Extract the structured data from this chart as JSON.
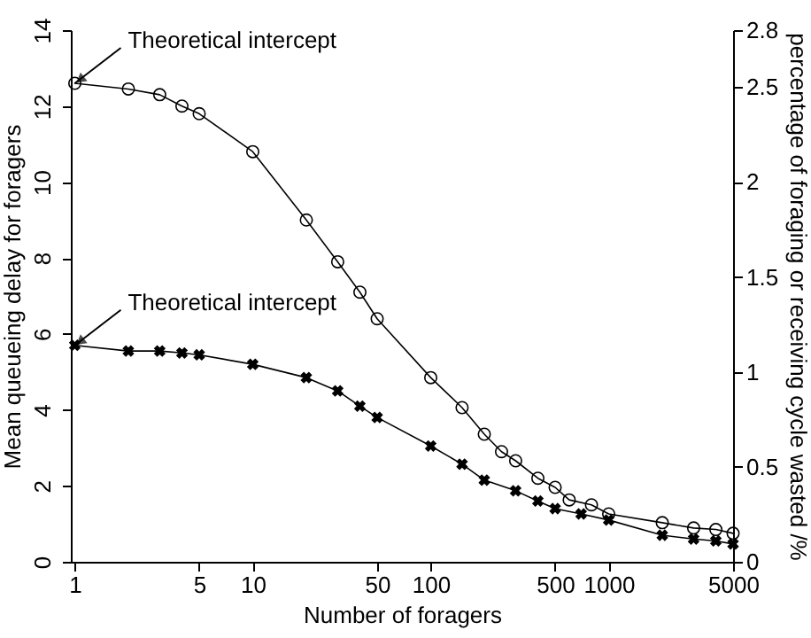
{
  "chart_data": {
    "type": "line",
    "xlabel": "Number of foragers",
    "ylabel": "Mean queueing delay for foragers",
    "y2label": "percentage of foraging or receiving cycle wasted /%",
    "log": "x",
    "xlim": [
      0.95,
      5000
    ],
    "xticks": [
      1,
      5,
      10,
      50,
      100,
      500,
      1000,
      5000
    ],
    "ylim": [
      0,
      14
    ],
    "yticks": [
      0,
      2,
      4,
      6,
      8,
      10,
      12,
      14
    ],
    "y2lim": [
      0,
      2.8
    ],
    "y2ticks": [
      0,
      0.5,
      1,
      1.5,
      2,
      2.5,
      2.8
    ],
    "grid": false,
    "series": [
      {
        "color": "#000000",
        "marker": "circle",
        "x": [
          1,
          2,
          3,
          4,
          5,
          10,
          20,
          30,
          40,
          50,
          100,
          150,
          200,
          250,
          300,
          400,
          500,
          600,
          800,
          1000,
          2000,
          3000,
          4000,
          5000
        ],
        "values": [
          12.6,
          12.45,
          12.3,
          12.0,
          11.8,
          10.8,
          9.0,
          7.9,
          7.1,
          6.4,
          4.85,
          4.06,
          3.36,
          2.9,
          2.66,
          2.2,
          1.96,
          1.63,
          1.5,
          1.26,
          1.03,
          0.89,
          0.85,
          0.75
        ]
      },
      {
        "color": "#000000",
        "marker": "cross",
        "x": [
          1,
          2,
          3,
          4,
          5,
          10,
          20,
          30,
          40,
          50,
          100,
          150,
          200,
          300,
          400,
          500,
          700,
          1000,
          2000,
          3000,
          4000,
          5000
        ],
        "values": [
          5.7,
          5.55,
          5.55,
          5.5,
          5.45,
          5.2,
          4.85,
          4.5,
          4.1,
          3.8,
          3.05,
          2.57,
          2.15,
          1.87,
          1.6,
          1.4,
          1.26,
          1.1,
          0.7,
          0.6,
          0.55,
          0.47
        ]
      }
    ],
    "annotations": [
      {
        "text": "Theoretical intercept",
        "x": 1,
        "y": 12.6
      },
      {
        "text": "Theoretical intercept",
        "x": 1,
        "y": 5.7
      }
    ]
  }
}
